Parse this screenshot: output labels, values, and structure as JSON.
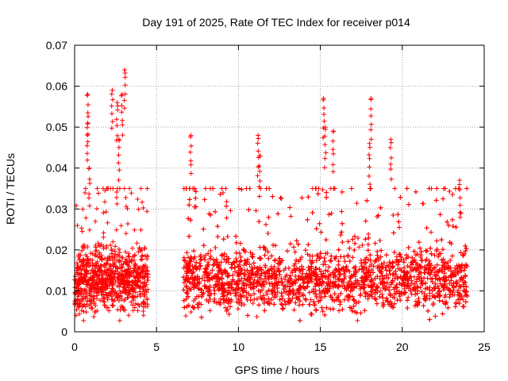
{
  "chart_data": {
    "type": "scatter",
    "title": "Day 191 of 2025, Rate Of TEC Index for receiver p014",
    "xlabel": "GPS time / hours",
    "ylabel": "ROTI / TECUs",
    "xlim": [
      0,
      25
    ],
    "ylim": [
      0,
      0.07
    ],
    "x_ticks": [
      0,
      5,
      10,
      15,
      20,
      25
    ],
    "x_tick_labels": [
      "0",
      "5",
      "10",
      "15",
      "20",
      "25"
    ],
    "y_ticks": [
      0,
      0.01,
      0.02,
      0.03,
      0.04,
      0.05,
      0.06,
      0.07
    ],
    "y_tick_labels": [
      "0",
      "0.01",
      "0.02",
      "0.03",
      "0.04",
      "0.05",
      "0.06",
      "0.07"
    ],
    "grid": true,
    "marker": "plus",
    "colors": {
      "points": "#ff0000",
      "grid": "#a0a0a0",
      "axis": "#000000"
    },
    "series": [
      {
        "name": "ROTI",
        "segments": [
          {
            "x_range": [
              0.0,
              4.5
            ],
            "typical_range": [
              0.005,
              0.028
            ]
          },
          {
            "x_range": [
              6.6,
              24.0
            ],
            "typical_range": [
              0.005,
              0.028
            ]
          }
        ],
        "gap": [
          4.5,
          6.6
        ],
        "peaks": [
          {
            "x": 0.8,
            "y": 0.058
          },
          {
            "x": 0.8,
            "y": 0.051
          },
          {
            "x": 0.9,
            "y": 0.04
          },
          {
            "x": 2.3,
            "y": 0.059
          },
          {
            "x": 2.6,
            "y": 0.056
          },
          {
            "x": 2.9,
            "y": 0.058
          },
          {
            "x": 3.05,
            "y": 0.064
          },
          {
            "x": 2.7,
            "y": 0.047
          },
          {
            "x": 7.1,
            "y": 0.048
          },
          {
            "x": 11.2,
            "y": 0.048
          },
          {
            "x": 11.3,
            "y": 0.043
          },
          {
            "x": 15.2,
            "y": 0.057
          },
          {
            "x": 15.3,
            "y": 0.05
          },
          {
            "x": 15.8,
            "y": 0.049
          },
          {
            "x": 18.1,
            "y": 0.057
          },
          {
            "x": 18.0,
            "y": 0.046
          },
          {
            "x": 19.3,
            "y": 0.047
          },
          {
            "x": 23.5,
            "y": 0.037
          }
        ]
      }
    ]
  }
}
